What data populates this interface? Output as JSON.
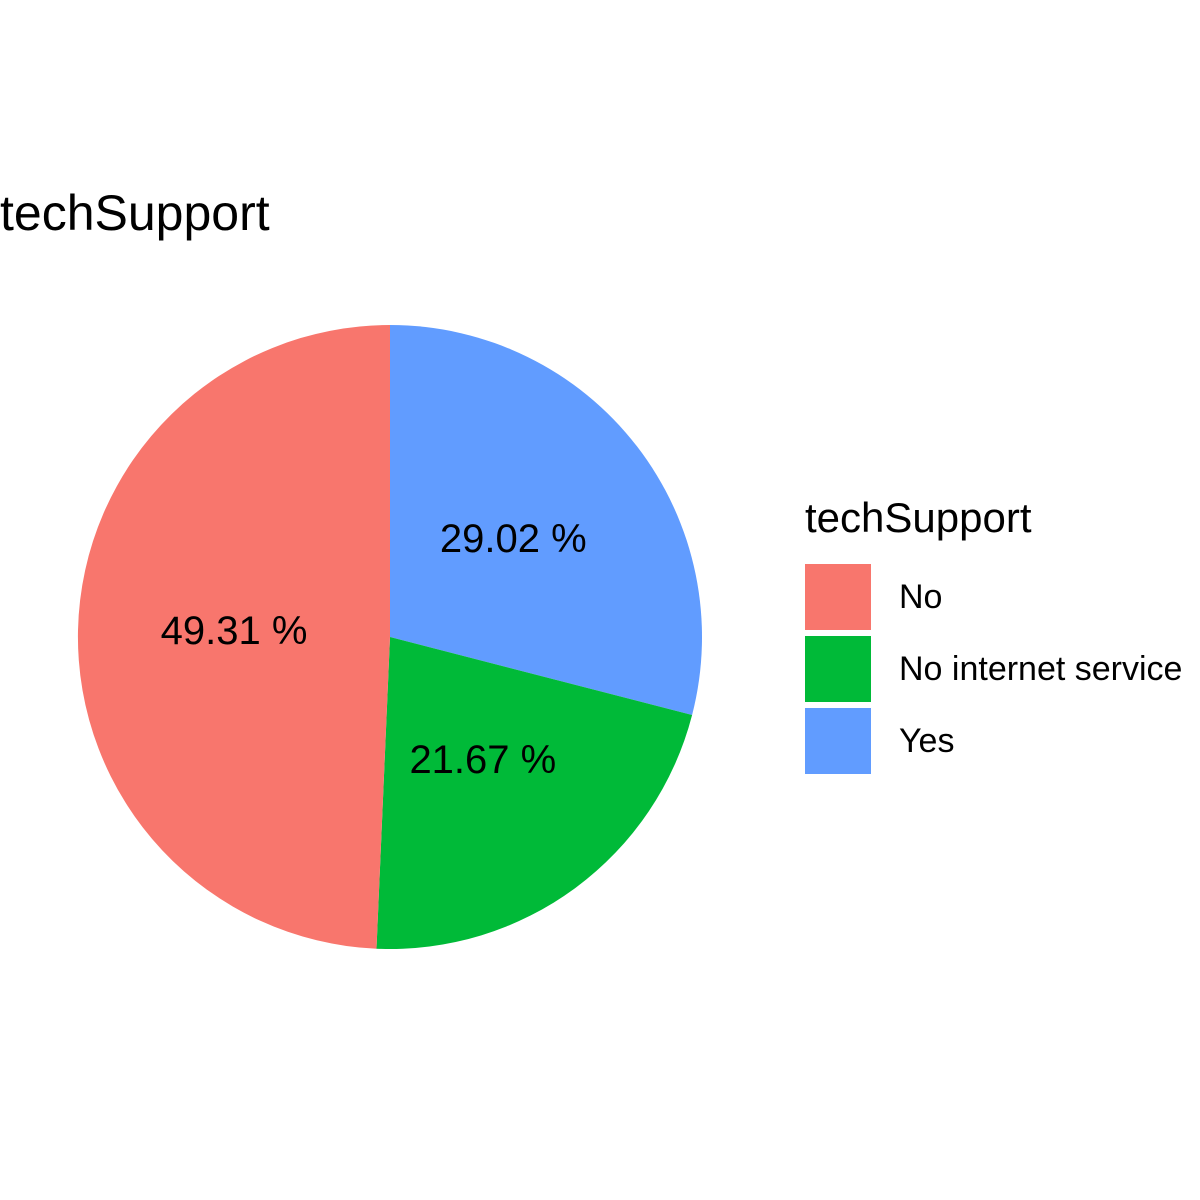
{
  "chart_data": {
    "type": "pie",
    "title": "techSupport",
    "categories": [
      "No",
      "No internet service",
      "Yes"
    ],
    "values": [
      49.31,
      21.67,
      29.02
    ],
    "labels": [
      "49.31 %",
      "21.67 %",
      "29.02 %"
    ],
    "colors": [
      "#F8766D",
      "#00BA38",
      "#619CFF"
    ],
    "legend": {
      "title": "techSupport",
      "position": "right"
    }
  }
}
